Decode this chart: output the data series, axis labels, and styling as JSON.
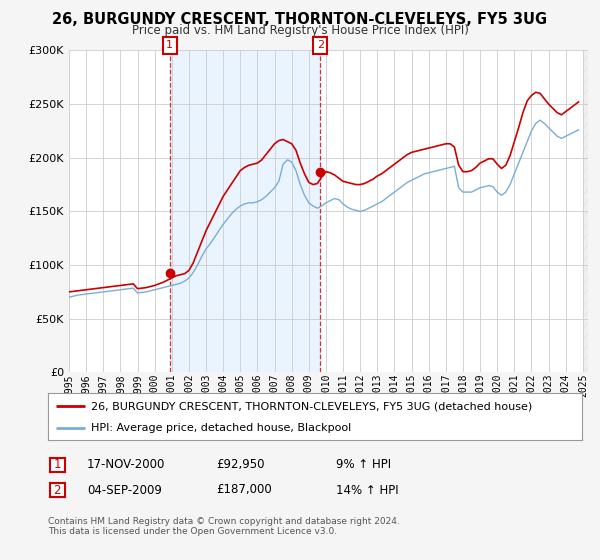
{
  "title": "26, BURGUNDY CRESCENT, THORNTON-CLEVELEYS, FY5 3UG",
  "subtitle": "Price paid vs. HM Land Registry's House Price Index (HPI)",
  "legend_line1": "26, BURGUNDY CRESCENT, THORNTON-CLEVELEYS, FY5 3UG (detached house)",
  "legend_line2": "HPI: Average price, detached house, Blackpool",
  "sale1_date": "17-NOV-2000",
  "sale1_price": 92950,
  "sale1_label": "9% ↑ HPI",
  "sale1_year": 2000.88,
  "sale2_date": "04-SEP-2009",
  "sale2_price": 187000,
  "sale2_label": "14% ↑ HPI",
  "sale2_year": 2009.67,
  "ylim": [
    0,
    300000
  ],
  "xlim_start": 1995.0,
  "xlim_end": 2025.3,
  "background_color": "#f5f5f5",
  "plot_bg_color": "#ffffff",
  "grid_color": "#cccccc",
  "red_color": "#cc0000",
  "blue_color": "#7badd4",
  "shade_color": "#ddeeff",
  "footnote": "Contains HM Land Registry data © Crown copyright and database right 2024.\nThis data is licensed under the Open Government Licence v3.0.",
  "hpi_years": [
    1995.0,
    1995.25,
    1995.5,
    1995.75,
    1996.0,
    1996.25,
    1996.5,
    1996.75,
    1997.0,
    1997.25,
    1997.5,
    1997.75,
    1998.0,
    1998.25,
    1998.5,
    1998.75,
    1999.0,
    1999.25,
    1999.5,
    1999.75,
    2000.0,
    2000.25,
    2000.5,
    2000.75,
    2001.0,
    2001.25,
    2001.5,
    2001.75,
    2002.0,
    2002.25,
    2002.5,
    2002.75,
    2003.0,
    2003.25,
    2003.5,
    2003.75,
    2004.0,
    2004.25,
    2004.5,
    2004.75,
    2005.0,
    2005.25,
    2005.5,
    2005.75,
    2006.0,
    2006.25,
    2006.5,
    2006.75,
    2007.0,
    2007.25,
    2007.5,
    2007.75,
    2008.0,
    2008.25,
    2008.5,
    2008.75,
    2009.0,
    2009.25,
    2009.5,
    2009.75,
    2010.0,
    2010.25,
    2010.5,
    2010.75,
    2011.0,
    2011.25,
    2011.5,
    2011.75,
    2012.0,
    2012.25,
    2012.5,
    2012.75,
    2013.0,
    2013.25,
    2013.5,
    2013.75,
    2014.0,
    2014.25,
    2014.5,
    2014.75,
    2015.0,
    2015.25,
    2015.5,
    2015.75,
    2016.0,
    2016.25,
    2016.5,
    2016.75,
    2017.0,
    2017.25,
    2017.5,
    2017.75,
    2018.0,
    2018.25,
    2018.5,
    2018.75,
    2019.0,
    2019.25,
    2019.5,
    2019.75,
    2020.0,
    2020.25,
    2020.5,
    2020.75,
    2021.0,
    2021.25,
    2021.5,
    2021.75,
    2022.0,
    2022.25,
    2022.5,
    2022.75,
    2023.0,
    2023.25,
    2023.5,
    2023.75,
    2024.0,
    2024.25,
    2024.5,
    2024.75
  ],
  "hpi_values": [
    70000,
    71000,
    72000,
    72500,
    73000,
    73500,
    74000,
    74500,
    75000,
    75500,
    76000,
    76500,
    77000,
    77500,
    78000,
    78500,
    74000,
    74500,
    75000,
    76000,
    77000,
    78000,
    79000,
    80000,
    81000,
    82000,
    83000,
    85000,
    88000,
    93000,
    100000,
    108000,
    115000,
    120000,
    126000,
    132000,
    138000,
    143000,
    148000,
    152000,
    155000,
    157000,
    158000,
    158000,
    159000,
    161000,
    164000,
    168000,
    172000,
    178000,
    194000,
    198000,
    196000,
    188000,
    175000,
    165000,
    158000,
    155000,
    153000,
    155000,
    158000,
    160000,
    162000,
    161000,
    157000,
    154000,
    152000,
    151000,
    150000,
    151000,
    153000,
    155000,
    157000,
    159000,
    162000,
    165000,
    168000,
    171000,
    174000,
    177000,
    179000,
    181000,
    183000,
    185000,
    186000,
    187000,
    188000,
    189000,
    190000,
    191000,
    192000,
    172000,
    168000,
    168000,
    168000,
    170000,
    172000,
    173000,
    174000,
    173000,
    168000,
    165000,
    168000,
    175000,
    185000,
    195000,
    205000,
    215000,
    225000,
    232000,
    235000,
    232000,
    228000,
    224000,
    220000,
    218000,
    220000,
    222000,
    224000,
    226000
  ],
  "prop_values": [
    75000,
    75500,
    76000,
    76500,
    77000,
    77500,
    78000,
    78500,
    79000,
    79500,
    80000,
    80500,
    81000,
    81500,
    82000,
    82500,
    78000,
    78500,
    79000,
    80000,
    81000,
    82500,
    84000,
    86000,
    88000,
    90000,
    91000,
    92000,
    95000,
    102000,
    112000,
    122000,
    132000,
    140000,
    148000,
    156000,
    164000,
    170000,
    176000,
    182000,
    188000,
    191000,
    193000,
    194000,
    195000,
    198000,
    203000,
    208000,
    213000,
    216000,
    217000,
    215000,
    213000,
    207000,
    195000,
    185000,
    177000,
    175000,
    176000,
    182000,
    187000,
    186000,
    184000,
    181000,
    178000,
    177000,
    176000,
    175000,
    175000,
    176000,
    178000,
    180000,
    183000,
    185000,
    188000,
    191000,
    194000,
    197000,
    200000,
    203000,
    205000,
    206000,
    207000,
    208000,
    209000,
    210000,
    211000,
    212000,
    213000,
    213000,
    210000,
    193000,
    187000,
    187000,
    188000,
    191000,
    195000,
    197000,
    199000,
    199000,
    194000,
    190000,
    193000,
    202000,
    215000,
    228000,
    242000,
    253000,
    258000,
    261000,
    260000,
    255000,
    250000,
    246000,
    242000,
    240000,
    243000,
    246000,
    249000,
    252000
  ]
}
